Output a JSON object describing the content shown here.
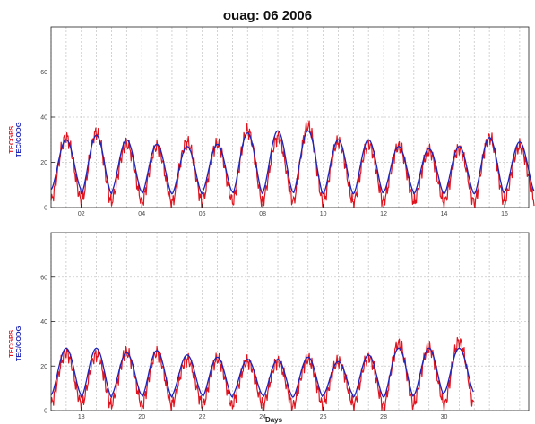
{
  "title": "ouag:   06 2006",
  "colors": {
    "gps": "#e0141e",
    "codg": "#1d24b8",
    "grid": "#c8c8c8",
    "axis": "#222222"
  },
  "chart_data": [
    {
      "type": "line",
      "panel": "top",
      "title": "",
      "xlabel": "",
      "ylabel_series": [
        "TECGPS",
        "TEC/CODG"
      ],
      "xlim": [
        1,
        16.8
      ],
      "ylim": [
        0,
        80
      ],
      "x_ticks": [
        2,
        4,
        6,
        8,
        10,
        12,
        14,
        16
      ],
      "x_tick_labels": [
        "02",
        "04",
        "06",
        "08",
        "10",
        "12",
        "14",
        "16"
      ],
      "y_ticks": [
        0,
        20,
        40,
        60
      ],
      "y_tick_labels": [
        "0",
        "20",
        "40",
        "60"
      ],
      "grid": true,
      "series": [
        {
          "name": "TECGPS",
          "color": "#e0141e",
          "daily_min": [
            3,
            2,
            3,
            2,
            2,
            3,
            2,
            3,
            2,
            2,
            2,
            3,
            2,
            2,
            2,
            3
          ],
          "daily_max": [
            31,
            33,
            28,
            27,
            29,
            28,
            34,
            31,
            36,
            29,
            28,
            27,
            25,
            26,
            31,
            27
          ]
        },
        {
          "name": "TEC/CODG",
          "color": "#1d24b8",
          "daily_min": [
            8,
            6,
            7,
            6,
            6,
            7,
            6,
            7,
            6,
            6,
            6,
            7,
            6,
            6,
            6,
            7
          ],
          "daily_max": [
            30,
            32,
            30,
            28,
            27,
            28,
            33,
            34,
            34,
            30,
            30,
            27,
            26,
            27,
            31,
            29
          ]
        }
      ]
    },
    {
      "type": "line",
      "panel": "bottom",
      "title": "",
      "xlabel": "Days",
      "ylabel_series": [
        "TECGPS",
        "TEC/CODG"
      ],
      "xlim": [
        17,
        32.8
      ],
      "ylim": [
        0,
        80
      ],
      "x_ticks": [
        18,
        20,
        22,
        24,
        26,
        28,
        30
      ],
      "x_tick_labels": [
        "18",
        "20",
        "22",
        "24",
        "26",
        "28",
        "30"
      ],
      "y_ticks": [
        0,
        20,
        40,
        60
      ],
      "y_tick_labels": [
        "0",
        "20",
        "40",
        "60"
      ],
      "grid": true,
      "series": [
        {
          "name": "TECGPS",
          "color": "#e0141e",
          "daily_min": [
            3,
            2,
            3,
            2,
            3,
            2,
            3,
            2,
            2,
            3,
            2,
            2,
            3,
            2
          ],
          "daily_max": [
            26,
            25,
            26,
            26,
            23,
            23,
            22,
            22,
            23,
            22,
            24,
            30,
            28,
            31
          ]
        },
        {
          "name": "TEC/CODG",
          "color": "#1d24b8",
          "daily_min": [
            7,
            6,
            7,
            6,
            7,
            6,
            7,
            6,
            6,
            7,
            6,
            6,
            7,
            8
          ],
          "daily_max": [
            28,
            28,
            26,
            27,
            25,
            24,
            23,
            23,
            24,
            22,
            25,
            28,
            28,
            28
          ]
        }
      ]
    }
  ]
}
